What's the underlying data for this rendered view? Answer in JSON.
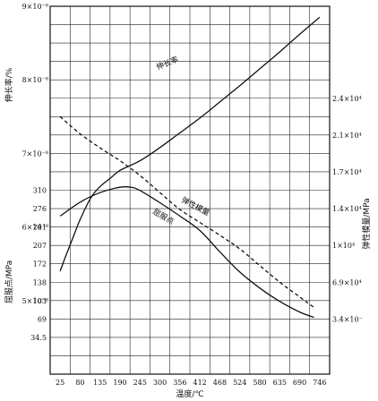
{
  "chart_data": {
    "type": "line",
    "x_axis": {
      "title": "温度/℃",
      "tick_labels": [
        "25",
        "80",
        "135",
        "190",
        "245",
        "300",
        "356",
        "412",
        "468",
        "524",
        "580",
        "635",
        "690",
        "746"
      ]
    },
    "left_axis_top": {
      "title": "伸长率/%",
      "tick_labels": [
        "9×10⁻⁸",
        "8×10⁻⁸",
        "7×10⁻⁸",
        "6×10⁻⁸",
        "5×10⁻⁸"
      ]
    },
    "left_axis_bottom": {
      "title": "屈服点/MPa",
      "tick_labels": [
        "310",
        "276",
        "241",
        "207",
        "172",
        "138",
        "103",
        "69",
        "34.5"
      ]
    },
    "right_axis": {
      "title": "弹性模量/MPa",
      "tick_labels": [
        "2.4×10⁴",
        "2.1×10⁴",
        "1.7×10⁴",
        "1.4×10⁴",
        "1×10⁴",
        "6.9×10⁴",
        "3.4×10⁻"
      ]
    },
    "series": [
      {
        "name": "伸长率",
        "axis": "left_top",
        "style": "solid",
        "x": [
          25,
          40,
          60,
          80,
          110,
          135,
          165,
          190,
          245,
          300,
          356,
          412,
          468,
          524,
          580,
          635,
          690,
          746
        ],
        "y": [
          5.4,
          5.6,
          5.85,
          6.1,
          6.4,
          6.55,
          6.67,
          6.77,
          6.9,
          7.08,
          7.28,
          7.48,
          7.7,
          7.92,
          8.15,
          8.38,
          8.62,
          8.85
        ]
      },
      {
        "name": "屈服点",
        "axis": "left_bottom",
        "style": "solid",
        "x": [
          25,
          80,
          135,
          190,
          220,
          245,
          300,
          356,
          412,
          468,
          524,
          580,
          635,
          690,
          730
        ],
        "y": [
          262,
          288,
          306,
          316,
          316,
          310,
          287,
          262,
          235,
          195,
          157,
          127,
          102,
          82,
          72
        ]
      },
      {
        "name": "弹性模量",
        "axis": "right",
        "style": "dashed",
        "x": [
          25,
          80,
          135,
          190,
          245,
          300,
          356,
          412,
          468,
          524,
          580,
          635,
          690,
          730
        ],
        "y": [
          2.25,
          2.11,
          1.96,
          1.82,
          1.67,
          1.53,
          1.39,
          1.25,
          1.11,
          0.97,
          0.83,
          0.69,
          0.55,
          0.45
        ]
      }
    ]
  }
}
